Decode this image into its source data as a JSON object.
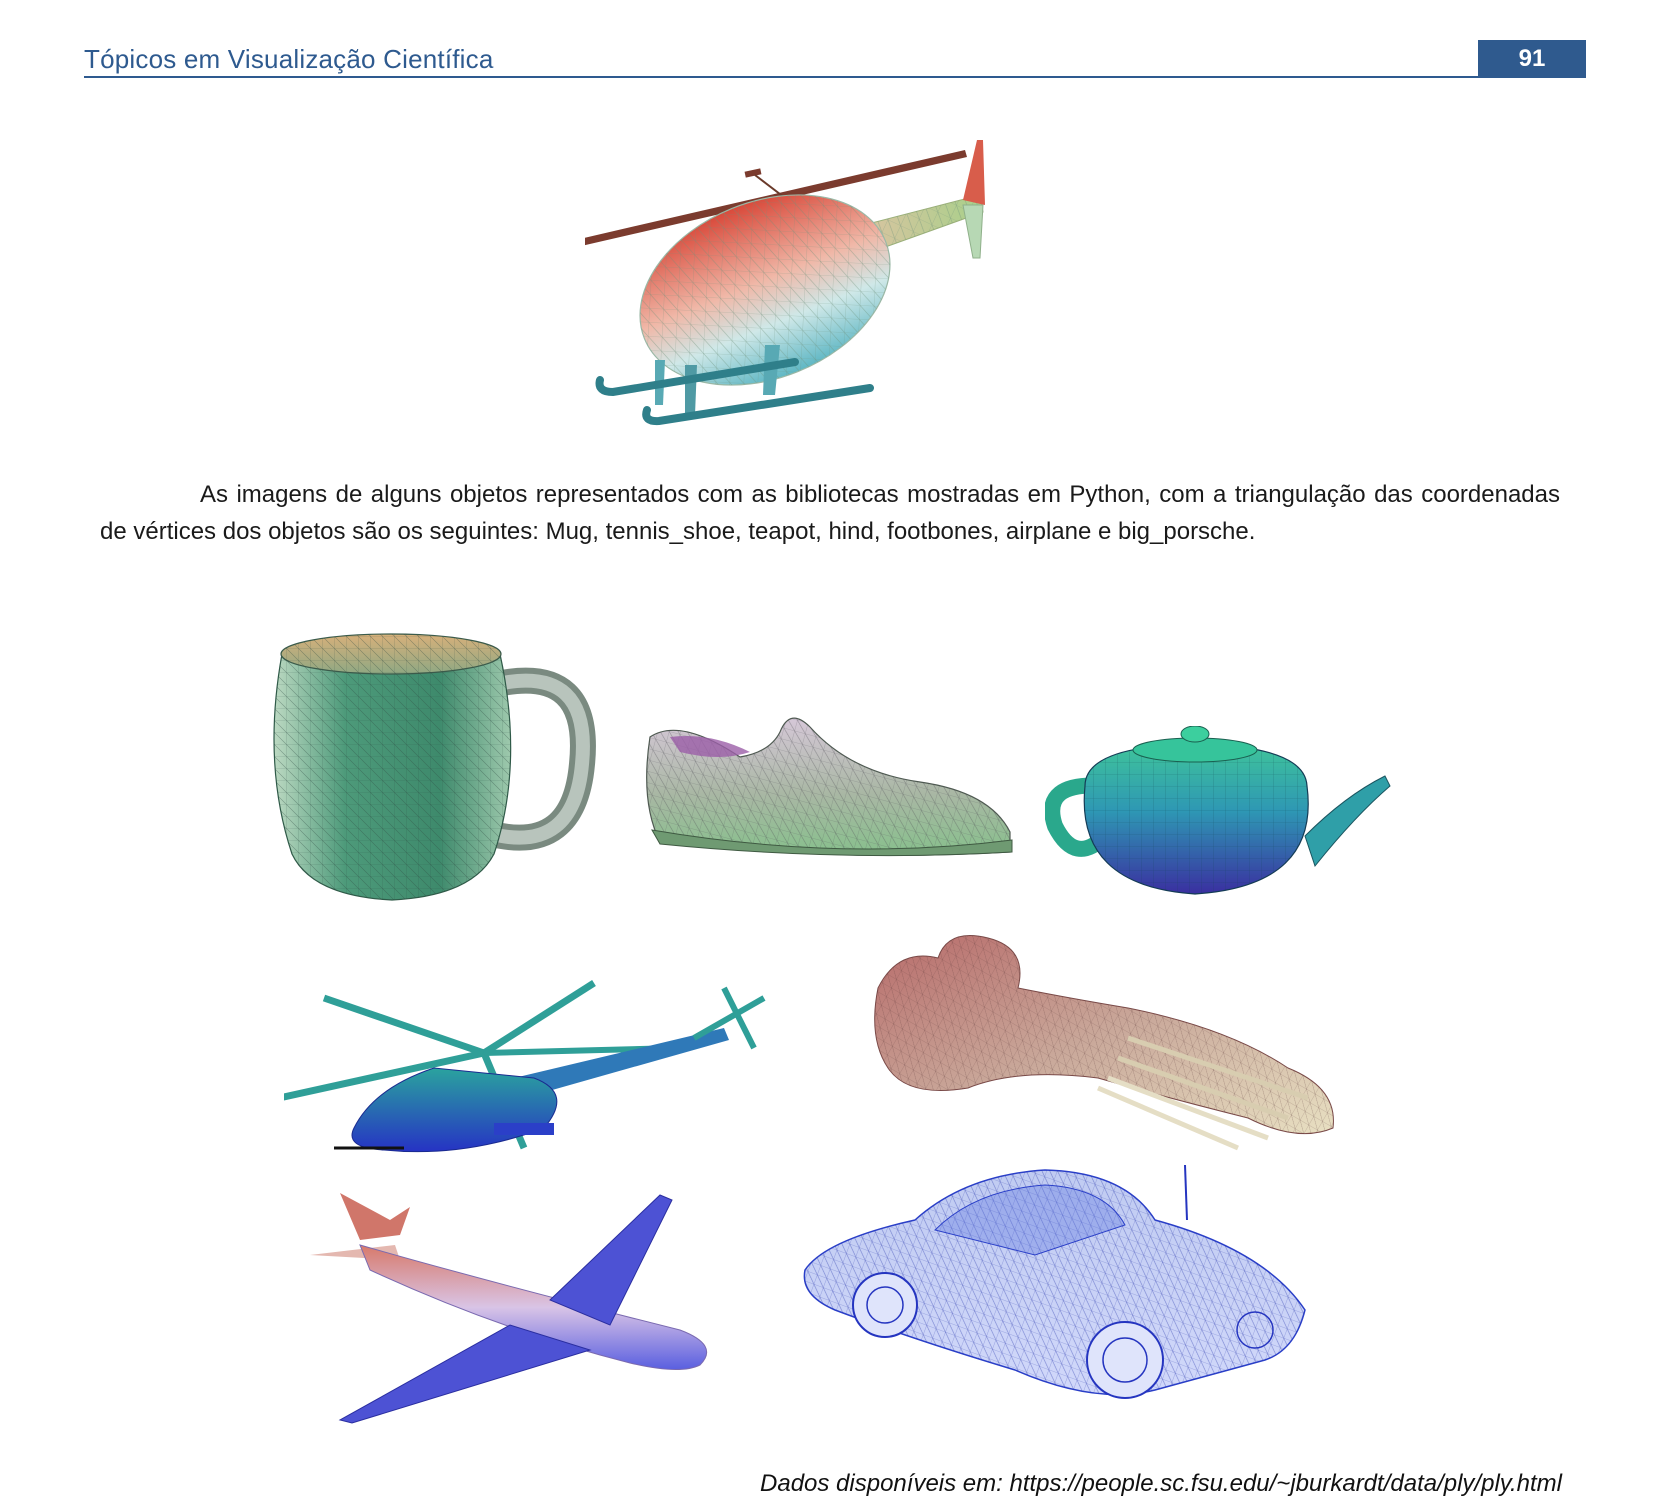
{
  "header": {
    "title": "Tópicos em Visualização Científica",
    "page_number": "91"
  },
  "body": {
    "paragraph": "As imagens de alguns objetos representados com as bibliotecas mostradas em Python, com a triangulação das coordenadas de vértices dos objetos são os seguintes: Mug, tennis_shoe, teapot, hind, footbones, airplane e big_porsche."
  },
  "footer": {
    "source": "Dados disponíveis em: https://people.sc.fsu.edu/~jburkardt/data/ply/ply.html"
  },
  "figures": [
    {
      "icon": "helicopter-mesh-icon"
    },
    {
      "icon": "mug-mesh-icon"
    },
    {
      "icon": "tennis-shoe-mesh-icon"
    },
    {
      "icon": "teapot-mesh-icon"
    },
    {
      "icon": "hind-helicopter-mesh-icon"
    },
    {
      "icon": "footbones-mesh-icon"
    },
    {
      "icon": "airplane-mesh-icon"
    },
    {
      "icon": "porsche-car-mesh-icon"
    }
  ]
}
